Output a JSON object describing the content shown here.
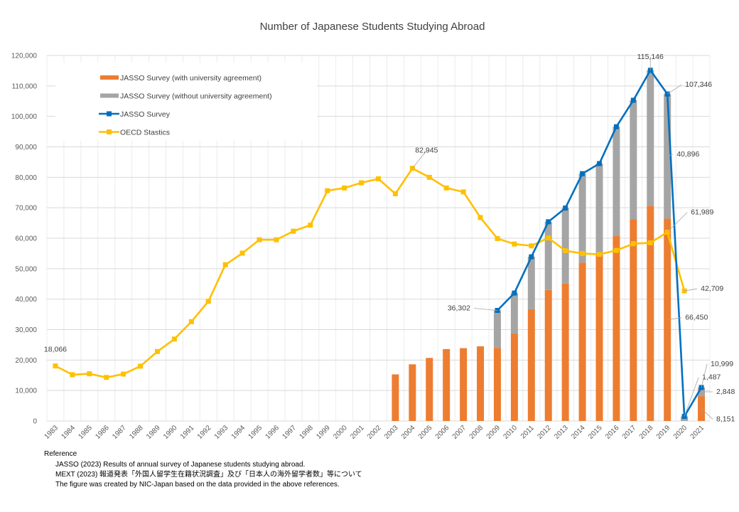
{
  "chart_data": {
    "type": "bar",
    "title": "Number of Japanese Students Studying Abroad",
    "xlabel": "",
    "ylabel": "",
    "ylim": [
      0,
      120000
    ],
    "yticks": [
      "0",
      "10,000",
      "20,000",
      "30,000",
      "40,000",
      "50,000",
      "60,000",
      "70,000",
      "80,000",
      "90,000",
      "100,000",
      "110,000",
      "120,000"
    ],
    "grid": true,
    "legend_position": "top-left",
    "categories": [
      "1983",
      "1984",
      "1985",
      "1986",
      "1987",
      "1988",
      "1989",
      "1990",
      "1991",
      "1992",
      "1993",
      "1994",
      "1995",
      "1996",
      "1997",
      "1998",
      "1999",
      "2000",
      "2001",
      "2002",
      "2003",
      "2004",
      "2005",
      "2006",
      "2007",
      "2008",
      "2009",
      "2010",
      "2011",
      "2012",
      "2013",
      "2014",
      "2015",
      "2016",
      "2017",
      "2018",
      "2019",
      "2020",
      "2021"
    ],
    "series": [
      {
        "name": "JASSO Survey (with university agreement)",
        "kind": "stacked-bar",
        "color": "#ED7D31",
        "values": [
          null,
          null,
          null,
          null,
          null,
          null,
          null,
          null,
          null,
          null,
          null,
          null,
          null,
          null,
          null,
          null,
          null,
          null,
          null,
          null,
          15300,
          18600,
          20700,
          23600,
          23900,
          24500,
          24000,
          28700,
          36700,
          43000,
          45100,
          52000,
          54500,
          60800,
          66200,
          70600,
          66450,
          0,
          8151
        ]
      },
      {
        "name": "JASSO Survey (without university agreement)",
        "kind": "stacked-bar",
        "color": "#A5A5A5",
        "values": [
          null,
          null,
          null,
          null,
          null,
          null,
          null,
          null,
          null,
          null,
          null,
          null,
          null,
          null,
          null,
          null,
          null,
          null,
          null,
          null,
          null,
          null,
          null,
          null,
          null,
          null,
          12302,
          13300,
          17200,
          22400,
          24800,
          29200,
          30000,
          35800,
          39100,
          44546,
          40896,
          1487,
          2848
        ]
      },
      {
        "name": "JASSO Survey",
        "kind": "line",
        "color": "#0070C0",
        "values": [
          null,
          null,
          null,
          null,
          null,
          null,
          null,
          null,
          null,
          null,
          null,
          null,
          null,
          null,
          null,
          null,
          null,
          null,
          null,
          null,
          null,
          null,
          null,
          null,
          null,
          null,
          36302,
          42000,
          53900,
          65400,
          69900,
          81200,
          84500,
          96600,
          105300,
          115146,
          107346,
          1487,
          10999
        ]
      },
      {
        "name": "OECD Stastics",
        "kind": "line",
        "color": "#FFC000",
        "values": [
          18066,
          15200,
          15500,
          14300,
          15400,
          18000,
          22800,
          26900,
          32600,
          39300,
          51300,
          55100,
          59500,
          59500,
          62300,
          64300,
          75600,
          76500,
          78200,
          79500,
          74600,
          82945,
          80000,
          76500,
          75200,
          66800,
          59900,
          58100,
          57500,
          60100,
          55900,
          55000,
          54700,
          56000,
          58200,
          58500,
          61989,
          42709,
          null
        ]
      }
    ],
    "data_labels": [
      {
        "series": 3,
        "year": "1983",
        "text": "18,066"
      },
      {
        "series": 3,
        "year": "2004",
        "text": "82,945"
      },
      {
        "series": 2,
        "year": "2009",
        "text": "36,302"
      },
      {
        "series": 2,
        "year": "2018",
        "text": "115,146"
      },
      {
        "series": 2,
        "year": "2019",
        "text": "107,346"
      },
      {
        "series": 1,
        "year": "2019",
        "text": "40,896"
      },
      {
        "series": 3,
        "year": "2019",
        "text": "61,989"
      },
      {
        "series": 3,
        "year": "2020",
        "text": "42,709"
      },
      {
        "series": 0,
        "year": "2019",
        "text": "66,450"
      },
      {
        "series": 2,
        "year": "2020",
        "text": "1,487"
      },
      {
        "series": 2,
        "year": "2021",
        "text": "10,999"
      },
      {
        "series": 1,
        "year": "2021",
        "text": "2,848"
      },
      {
        "series": 0,
        "year": "2021",
        "text": "8,151"
      }
    ]
  },
  "reference": {
    "heading": "Reference",
    "lines": [
      "JASSO (2023) Results of annual survey of Japanese students studying abroad.",
      "MEXT (2023) 報道発表「外国人留学生在籍状況調査」及び「日本人の海外留学者数」等について",
      "The figure was created by NIC-Japan based on the data provided in the above references."
    ]
  }
}
